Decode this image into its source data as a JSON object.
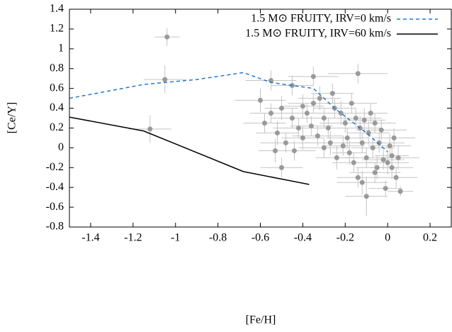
{
  "chart_data": {
    "type": "scatter",
    "xlabel": "[Fe/H]",
    "ylabel": "[Ce/Y]",
    "xlim": [
      -1.5,
      0.3
    ],
    "ylim": [
      -0.8,
      1.4
    ],
    "xticks": [
      -1.4,
      -1.2,
      -1,
      -0.8,
      -0.6,
      -0.4,
      -0.2,
      0,
      0.2
    ],
    "yticks": [
      -0.8,
      -0.6,
      -0.4,
      -0.2,
      0,
      0.2,
      0.4,
      0.6,
      0.8,
      1,
      1.2,
      1.4
    ],
    "legend": "upper right",
    "series": [
      {
        "type": "scatter",
        "color": "#999999",
        "errcolor": "#c4c4c4",
        "x": [
          -1.04,
          -1.05,
          -1.12,
          -0.55,
          -0.45,
          -0.35,
          -0.14,
          -0.5,
          -0.6,
          -0.55,
          -0.5,
          -0.45,
          -0.42,
          -0.4,
          -0.38,
          -0.35,
          -0.32,
          -0.3,
          -0.28,
          -0.27,
          -0.25,
          -0.22,
          -0.2,
          -0.19,
          -0.18,
          -0.16,
          -0.15,
          -0.13,
          -0.12,
          -0.1,
          -0.09,
          -0.08,
          -0.06,
          -0.05,
          -0.04,
          -0.02,
          0,
          0.02,
          0.03,
          0.05,
          0.06,
          -0.01,
          0.04,
          -0.1,
          -0.12,
          -0.58,
          -0.52,
          -0.48,
          -0.44,
          -0.53,
          -0.36,
          -0.33,
          -0.24,
          -0.21,
          -0.17,
          -0.11,
          -0.07,
          -0.03,
          0.01,
          -0.26,
          -0.3,
          -0.4,
          -0.14,
          -0.06,
          0.02
        ],
        "values": [
          1.12,
          0.69,
          0.19,
          0.68,
          0.63,
          0.72,
          0.75,
          -0.2,
          0.48,
          0.35,
          0.4,
          0.3,
          0.2,
          0.1,
          0.35,
          0.45,
          0.5,
          0.3,
          0.2,
          0.05,
          0.4,
          0.35,
          0.25,
          0.1,
          -0.05,
          -0.15,
          0.3,
          0.2,
          0.05,
          -0.1,
          0.15,
          0.35,
          0.25,
          -0.2,
          0.05,
          -0.12,
          -0.15,
          -0.08,
          0.1,
          -0.1,
          -0.44,
          -0.41,
          -0.3,
          -0.49,
          -0.35,
          0.25,
          0.15,
          0.05,
          -0.03,
          -0.03,
          0.22,
          0.12,
          -0.1,
          0.02,
          0.45,
          0.28,
          0,
          0.18,
          0.02,
          0.55,
          0,
          0.42,
          -0.3,
          -0.25,
          -0.2
        ],
        "xerr": [
          0.06,
          0.1,
          0.1,
          0.12,
          0.1,
          0.12,
          0.14,
          0.1,
          0.12,
          0.1,
          0.08,
          0.1,
          0.12,
          0.1,
          0.1,
          0.12,
          0.1,
          0.08,
          0.1,
          0.12,
          0.1,
          0.1,
          0.12,
          0.1,
          0.08,
          0.1,
          0.12,
          0.1,
          0.1,
          0.12,
          0.1,
          0.08,
          0.1,
          0.1,
          0.12,
          0.1,
          0.1,
          0.08,
          0.1,
          0.1,
          0.06,
          0.08,
          0.1,
          0.1,
          0.12,
          0.1,
          0.1,
          0.12,
          0.1,
          0.08,
          0.1,
          0.12,
          0.1,
          0.1,
          0.12,
          0.1,
          0.1,
          0.12,
          0.1,
          0.1,
          0.12,
          0.1,
          0.1,
          0.12,
          0.1
        ],
        "yerr": [
          0.09,
          0.14,
          0.14,
          0.1,
          0.1,
          0.1,
          0.1,
          0.1,
          0.12,
          0.1,
          0.12,
          0.1,
          0.1,
          0.12,
          0.1,
          0.1,
          0.12,
          0.1,
          0.1,
          0.12,
          0.1,
          0.12,
          0.1,
          0.1,
          0.12,
          0.1,
          0.1,
          0.12,
          0.1,
          0.1,
          0.12,
          0.1,
          0.1,
          0.12,
          0.1,
          0.1,
          0.12,
          0.1,
          0.1,
          0.12,
          0.05,
          0.08,
          0.1,
          0.2,
          0.12,
          0.1,
          0.12,
          0.1,
          0.1,
          0.12,
          0.1,
          0.1,
          0.12,
          0.1,
          0.1,
          0.12,
          0.1,
          0.1,
          0.12,
          0.1,
          0.1,
          0.12,
          0.1,
          0.1,
          0.12
        ]
      },
      {
        "type": "line",
        "name": "1.5 M⊙ FRUITY, IRV=0 km/s",
        "color": "#1f77d4",
        "dash": true,
        "x": [
          -1.5,
          -1.15,
          -0.9,
          -0.68,
          -0.55,
          -0.35,
          -0.25,
          -0.1,
          0
        ],
        "values": [
          0.5,
          0.64,
          0.69,
          0.76,
          0.66,
          0.6,
          0.4,
          0.15,
          -0.04
        ]
      },
      {
        "type": "line",
        "name": "1.5 M⊙ FRUITY, IRV=60 km/s",
        "color": "#000000",
        "dash": false,
        "x": [
          -1.5,
          -1.15,
          -0.68,
          -0.37
        ],
        "values": [
          0.31,
          0.17,
          -0.24,
          -0.37
        ]
      }
    ]
  }
}
